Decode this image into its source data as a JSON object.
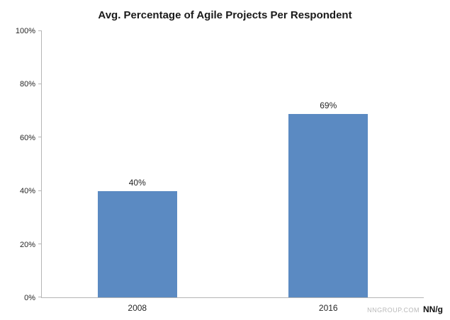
{
  "chart_data": {
    "type": "bar",
    "title": "Avg. Percentage of Agile Projects Per Respondent",
    "categories": [
      "2008",
      "2016"
    ],
    "values": [
      40,
      69
    ],
    "value_labels": [
      "40%",
      "69%"
    ],
    "xlabel": "",
    "ylabel": "",
    "ylim": [
      0,
      100
    ],
    "yticks": [
      0,
      20,
      40,
      60,
      80,
      100
    ],
    "ytick_labels": [
      "0%",
      "20%",
      "40%",
      "60%",
      "80%",
      "100%"
    ],
    "grid": false,
    "legend": "none",
    "bar_color": "#5b8ac2",
    "axis_color": "#b5b5b5"
  },
  "footer": {
    "site": "NNGROUP.COM",
    "logo": "NN/g"
  }
}
